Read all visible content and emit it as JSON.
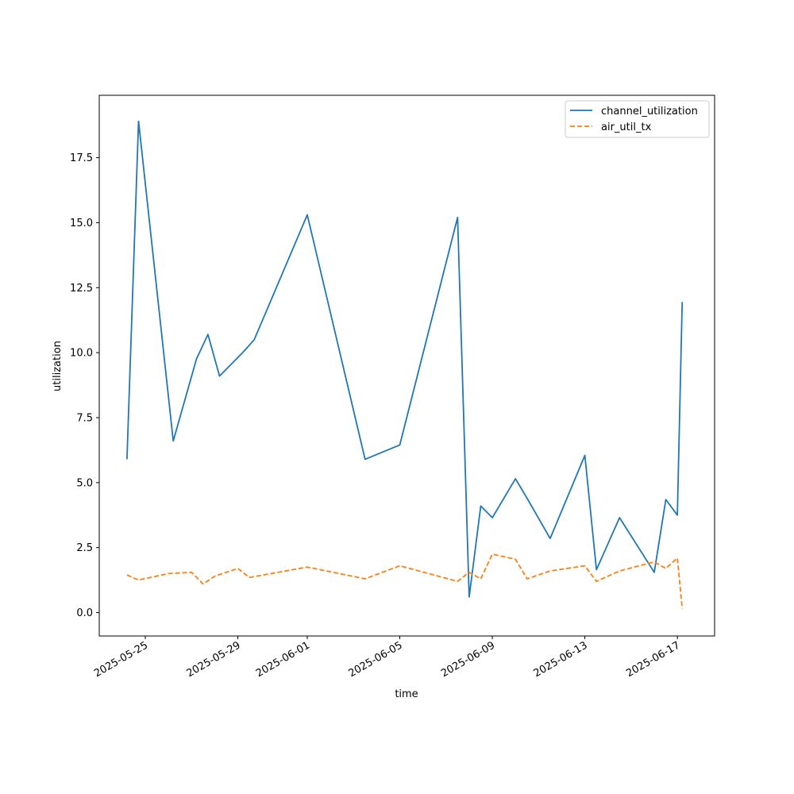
{
  "chart_data": {
    "type": "line",
    "xlabel": "time",
    "ylabel": "utilization",
    "x_scale": "date",
    "xlim": [
      "2025-05-23T00:13:00",
      "2025-06-18T14:36:00"
    ],
    "ylim": [
      -0.9,
      19.9
    ],
    "y_ticks": [
      0.0,
      2.5,
      5.0,
      7.5,
      10.0,
      12.5,
      15.0,
      17.5
    ],
    "y_tick_labels": [
      "0.0",
      "2.5",
      "5.0",
      "7.5",
      "10.0",
      "12.5",
      "15.0",
      "17.5"
    ],
    "x_ticks": [
      "2025-05-25",
      "2025-05-29",
      "2025-06-01",
      "2025-06-05",
      "2025-06-09",
      "2025-06-13",
      "2025-06-17"
    ],
    "legend": {
      "position": "upper right"
    },
    "grid": false,
    "series": [
      {
        "name": "channel_utilization",
        "color": "#1f77b4",
        "style": "solid",
        "points": [
          [
            "2025-05-24T05:00:00",
            5.9
          ],
          [
            "2025-05-24T17:00:00",
            18.9
          ],
          [
            "2025-05-26T05:00:00",
            6.6
          ],
          [
            "2025-05-27T05:00:00",
            9.75
          ],
          [
            "2025-05-27T17:00:00",
            10.7
          ],
          [
            "2025-05-28T05:00:00",
            9.1
          ],
          [
            "2025-05-29T05:00:00",
            10.0
          ],
          [
            "2025-05-29T17:00:00",
            10.5
          ],
          [
            "2025-06-01T00:00:00",
            15.3
          ],
          [
            "2025-06-03T12:00:00",
            5.9
          ],
          [
            "2025-06-05T00:00:00",
            6.45
          ],
          [
            "2025-06-07T12:00:00",
            15.2
          ],
          [
            "2025-06-08T00:00:00",
            0.6
          ],
          [
            "2025-06-08T12:00:00",
            4.1
          ],
          [
            "2025-06-09T00:00:00",
            3.65
          ],
          [
            "2025-06-10T00:00:00",
            5.15
          ],
          [
            "2025-06-10T12:00:00",
            4.4
          ],
          [
            "2025-06-11T12:00:00",
            2.85
          ],
          [
            "2025-06-13T00:00:00",
            6.05
          ],
          [
            "2025-06-13T12:00:00",
            1.65
          ],
          [
            "2025-06-14T12:00:00",
            3.65
          ],
          [
            "2025-06-16T00:00:00",
            1.55
          ],
          [
            "2025-06-16T12:00:00",
            4.35
          ],
          [
            "2025-06-17T00:00:00",
            3.75
          ],
          [
            "2025-06-17T05:00:00",
            11.95
          ]
        ]
      },
      {
        "name": "air_util_tx",
        "color": "#ff7f0e",
        "style": "dashed",
        "points": [
          [
            "2025-05-24T05:00:00",
            1.45
          ],
          [
            "2025-05-24T17:00:00",
            1.25
          ],
          [
            "2025-05-26T00:00:00",
            1.5
          ],
          [
            "2025-05-27T00:00:00",
            1.55
          ],
          [
            "2025-05-27T12:00:00",
            1.1
          ],
          [
            "2025-05-28T00:00:00",
            1.4
          ],
          [
            "2025-05-29T00:00:00",
            1.7
          ],
          [
            "2025-05-29T12:00:00",
            1.35
          ],
          [
            "2025-06-01T00:00:00",
            1.75
          ],
          [
            "2025-06-03T12:00:00",
            1.3
          ],
          [
            "2025-06-05T00:00:00",
            1.8
          ],
          [
            "2025-06-07T12:00:00",
            1.2
          ],
          [
            "2025-06-08T00:00:00",
            1.55
          ],
          [
            "2025-06-08T12:00:00",
            1.3
          ],
          [
            "2025-06-09T00:00:00",
            2.25
          ],
          [
            "2025-06-10T00:00:00",
            2.05
          ],
          [
            "2025-06-10T12:00:00",
            1.3
          ],
          [
            "2025-06-11T12:00:00",
            1.6
          ],
          [
            "2025-06-13T00:00:00",
            1.8
          ],
          [
            "2025-06-13T12:00:00",
            1.2
          ],
          [
            "2025-06-14T12:00:00",
            1.6
          ],
          [
            "2025-06-16T00:00:00",
            1.95
          ],
          [
            "2025-06-16T12:00:00",
            1.7
          ],
          [
            "2025-06-17T00:00:00",
            2.1
          ],
          [
            "2025-06-17T05:00:00",
            0.15
          ]
        ]
      }
    ]
  }
}
